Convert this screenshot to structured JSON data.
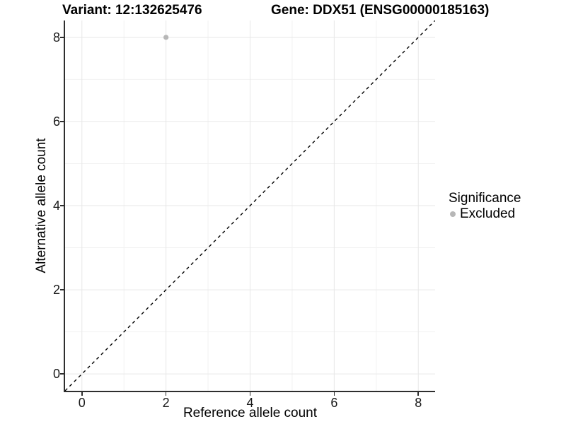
{
  "figure": {
    "title_left": "Variant: 12:132625476",
    "title_right": "Gene: DDX51 (ENSG00000185163)"
  },
  "axes": {
    "x_title": "Reference allele count",
    "y_title": "Alternative allele count"
  },
  "legend": {
    "title": "Significance",
    "items": [
      {
        "label": "Excluded",
        "color": "#b7b7b7"
      }
    ]
  },
  "chart_data": {
    "type": "scatter",
    "title": "Variant: 12:132625476   Gene: DDX51 (ENSG00000185163)",
    "xlabel": "Reference allele count",
    "ylabel": "Alternative allele count",
    "xlim": [
      -0.4,
      8.4
    ],
    "ylim": [
      -0.4,
      8.4
    ],
    "x_ticks": [
      0,
      2,
      4,
      6,
      8
    ],
    "y_ticks": [
      0,
      2,
      4,
      6,
      8
    ],
    "x_minor_ticks": [
      1,
      3,
      5,
      7
    ],
    "y_minor_ticks": [
      1,
      3,
      5,
      7
    ],
    "grid": "on",
    "legend_position": "right",
    "series": [
      {
        "name": "Excluded",
        "color": "#b7b7b7",
        "points": [
          {
            "x": 2,
            "y": 8
          }
        ]
      }
    ],
    "reference_line": {
      "kind": "identity y=x",
      "from": [
        -0.4,
        -0.4
      ],
      "to": [
        8.4,
        8.4
      ],
      "style": "dashed",
      "color": "#000000"
    },
    "colors": {
      "grid_major": "#e7e7e7",
      "grid_minor": "#f2f2f2",
      "axis_line": "#2e2e2e",
      "tick": "#2e2e2e",
      "point_excluded": "#b7b7b7",
      "background": "#ffffff"
    }
  }
}
